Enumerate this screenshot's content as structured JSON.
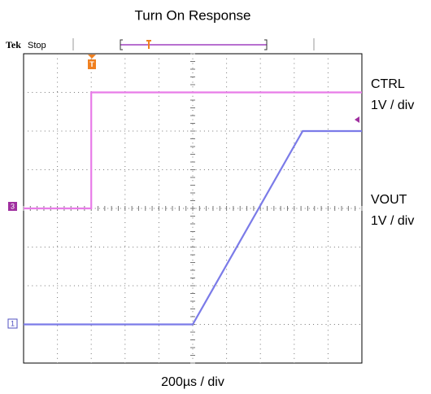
{
  "chart_data": {
    "type": "line",
    "title": "Turn On Response",
    "xlabel": "200µs / div",
    "header": {
      "brand": "Tek",
      "state": "Stop"
    },
    "channel_markers": {
      "ctrl": "3",
      "vout": "1",
      "trigger": "T"
    },
    "series": [
      {
        "name": "CTRL",
        "scale": "1V / div",
        "color": "#e87ce8",
        "x": [
          0,
          2,
          2,
          10
        ],
        "values": [
          4,
          4,
          7,
          7
        ]
      },
      {
        "name": "VOUT",
        "scale": "1V / div",
        "color": "#7b7be8",
        "x": [
          0,
          5,
          8.25,
          10
        ],
        "values": [
          1,
          1,
          6,
          6
        ]
      }
    ],
    "xlim": [
      0,
      10
    ],
    "ylim": [
      0,
      8
    ],
    "grid": true
  }
}
